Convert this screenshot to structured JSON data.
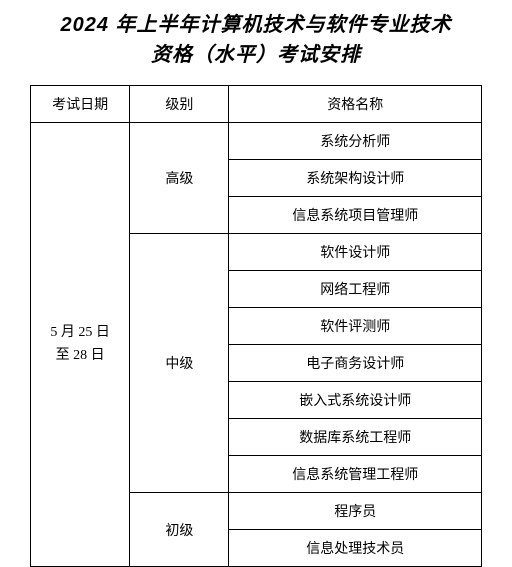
{
  "title_line1": "2024 年上半年计算机技术与软件专业技术",
  "title_line2": "资格（水平）考试安排",
  "headers": {
    "date": "考试日期",
    "level": "级别",
    "qualification": "资格名称"
  },
  "date_text": "5 月 25 日\n至 28 日",
  "levels": {
    "advanced": "高级",
    "intermediate": "中级",
    "primary": "初级"
  },
  "qualifications": {
    "advanced": [
      "系统分析师",
      "系统架构设计师",
      "信息系统项目管理师"
    ],
    "intermediate": [
      "软件设计师",
      "网络工程师",
      "软件评测师",
      "电子商务设计师",
      "嵌入式系统设计师",
      "数据库系统工程师",
      "信息系统管理工程师"
    ],
    "primary": [
      "程序员",
      "信息处理技术员"
    ]
  },
  "styling": {
    "background_color": "#ffffff",
    "border_color": "#000000",
    "title_fontsize": 20,
    "cell_fontsize": 14,
    "title_font_family": "SimHei",
    "body_font_family": "SimSun"
  }
}
